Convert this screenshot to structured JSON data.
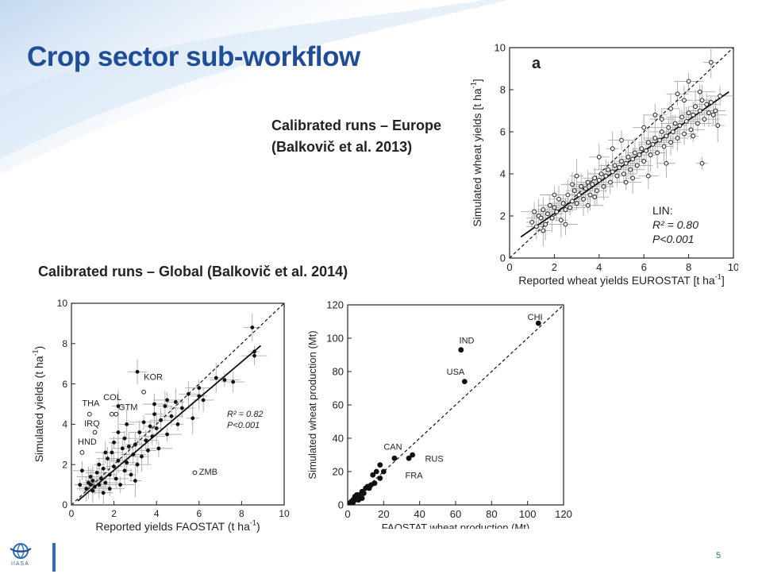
{
  "slide": {
    "title": "Crop sector sub-workflow",
    "caption_europe_line1": "Calibrated runs – Europe",
    "caption_europe_line2": "(Balkovič et al. 2013)",
    "caption_global": "Calibrated runs – Global (Balkovič et al. 2014)",
    "page_number": "5",
    "logo_text": "IIASA",
    "accent": "#1f4e96"
  },
  "chart_data": [
    {
      "type": "scatter",
      "panel": "a",
      "xlabel": "Reported wheat yields EUROSTAT [t ha",
      "ylabel": "Simulated wheat yields [t ha",
      "unit_sup": "-1",
      "unit_close": "]",
      "xlim": [
        0,
        10
      ],
      "ylim": [
        0,
        10
      ],
      "xticks": [
        0,
        2,
        4,
        6,
        8,
        10
      ],
      "yticks": [
        0,
        2,
        4,
        6,
        8,
        10
      ],
      "stats": [
        "LIN:",
        "R² = 0.80",
        "P<0.001"
      ],
      "one_to_one_line": true,
      "fit_line": {
        "x": [
          0.5,
          9.8
        ],
        "y": [
          1.0,
          7.9
        ]
      },
      "marker": "open-circle",
      "points": [
        [
          1.0,
          1.7
        ],
        [
          1.1,
          2.2
        ],
        [
          1.2,
          1.5
        ],
        [
          1.3,
          2.0
        ],
        [
          1.4,
          1.9
        ],
        [
          1.5,
          2.3
        ],
        [
          1.6,
          1.6
        ],
        [
          1.7,
          2.1
        ],
        [
          1.8,
          2.5
        ],
        [
          1.9,
          1.9
        ],
        [
          2.0,
          2.4
        ],
        [
          2.1,
          2.2
        ],
        [
          2.2,
          2.8
        ],
        [
          2.3,
          1.8
        ],
        [
          2.4,
          2.6
        ],
        [
          2.5,
          2.3
        ],
        [
          2.6,
          3.0
        ],
        [
          2.7,
          2.4
        ],
        [
          2.8,
          2.7
        ],
        [
          2.9,
          3.2
        ],
        [
          3.0,
          2.6
        ],
        [
          3.1,
          3.0
        ],
        [
          3.2,
          3.4
        ],
        [
          3.3,
          2.8
        ],
        [
          3.4,
          3.3
        ],
        [
          3.5,
          3.6
        ],
        [
          3.6,
          3.0
        ],
        [
          3.7,
          3.5
        ],
        [
          3.8,
          3.8
        ],
        [
          3.9,
          3.2
        ],
        [
          4.0,
          3.7
        ],
        [
          4.1,
          4.0
        ],
        [
          4.2,
          3.4
        ],
        [
          4.3,
          3.9
        ],
        [
          4.4,
          4.2
        ],
        [
          4.5,
          3.6
        ],
        [
          4.6,
          4.1
        ],
        [
          4.7,
          4.4
        ],
        [
          4.8,
          3.9
        ],
        [
          4.9,
          4.3
        ],
        [
          5.0,
          4.6
        ],
        [
          5.1,
          4.0
        ],
        [
          5.2,
          4.5
        ],
        [
          5.3,
          4.8
        ],
        [
          5.4,
          4.2
        ],
        [
          5.5,
          4.7
        ],
        [
          5.6,
          5.0
        ],
        [
          5.7,
          4.4
        ],
        [
          5.8,
          4.9
        ],
        [
          5.9,
          5.2
        ],
        [
          6.0,
          4.6
        ],
        [
          6.1,
          5.1
        ],
        [
          6.2,
          5.5
        ],
        [
          6.3,
          4.9
        ],
        [
          6.4,
          5.4
        ],
        [
          6.5,
          5.7
        ],
        [
          6.6,
          5.0
        ],
        [
          6.7,
          5.6
        ],
        [
          6.8,
          6.0
        ],
        [
          6.9,
          5.3
        ],
        [
          7.0,
          5.8
        ],
        [
          7.1,
          6.2
        ],
        [
          7.2,
          5.5
        ],
        [
          7.3,
          6.0
        ],
        [
          7.4,
          6.4
        ],
        [
          7.5,
          5.7
        ],
        [
          7.6,
          6.3
        ],
        [
          7.7,
          6.7
        ],
        [
          7.8,
          5.9
        ],
        [
          7.9,
          6.5
        ],
        [
          8.0,
          6.9
        ],
        [
          8.1,
          6.1
        ],
        [
          8.2,
          6.8
        ],
        [
          8.3,
          7.2
        ],
        [
          8.4,
          6.4
        ],
        [
          8.5,
          7.0
        ],
        [
          8.6,
          7.5
        ],
        [
          8.7,
          6.6
        ],
        [
          8.8,
          7.3
        ],
        [
          8.9,
          6.9
        ],
        [
          9.0,
          7.4
        ],
        [
          9.1,
          6.8
        ],
        [
          9.2,
          7.0
        ],
        [
          9.3,
          6.3
        ],
        [
          8.0,
          8.4
        ],
        [
          7.5,
          7.8
        ],
        [
          9.0,
          9.3
        ],
        [
          8.5,
          7.9
        ],
        [
          6.5,
          6.8
        ],
        [
          7.0,
          4.5
        ],
        [
          8.6,
          4.5
        ],
        [
          5.0,
          5.6
        ],
        [
          4.0,
          4.8
        ],
        [
          3.0,
          3.9
        ],
        [
          2.0,
          3.0
        ],
        [
          6.0,
          6.2
        ],
        [
          5.5,
          3.8
        ],
        [
          3.5,
          2.5
        ],
        [
          2.5,
          1.6
        ],
        [
          7.8,
          7.5
        ],
        [
          8.2,
          5.8
        ],
        [
          9.4,
          7.7
        ],
        [
          6.2,
          3.9
        ],
        [
          4.6,
          5.2
        ],
        [
          3.8,
          2.9
        ],
        [
          2.8,
          3.5
        ],
        [
          1.5,
          1.3
        ],
        [
          5.2,
          3.6
        ],
        [
          6.8,
          6.6
        ],
        [
          7.2,
          7.1
        ]
      ]
    },
    {
      "type": "scatter",
      "xlabel": "Reported yields FAOSTAT (t ha",
      "ylabel": "Simulated yields (t ha",
      "unit_sup": "-1",
      "unit_close": ")",
      "xlim": [
        0,
        10
      ],
      "ylim": [
        0,
        10
      ],
      "xticks": [
        0,
        2,
        4,
        6,
        8,
        10
      ],
      "yticks": [
        0,
        2,
        4,
        6,
        8,
        10
      ],
      "stats": [
        "R² = 0.82",
        "P<0.001"
      ],
      "one_to_one_line": true,
      "fit_line": {
        "x": [
          0.3,
          8.9
        ],
        "y": [
          0.2,
          7.9
        ]
      },
      "labels": [
        {
          "text": "KOR",
          "x": 3.4,
          "y": 6.2
        },
        {
          "text": "THA",
          "x": 0.5,
          "y": 4.9
        },
        {
          "text": "COL",
          "x": 1.5,
          "y": 5.2
        },
        {
          "text": "GTM",
          "x": 2.2,
          "y": 4.7
        },
        {
          "text": "IRQ",
          "x": 0.6,
          "y": 3.9
        },
        {
          "text": "HND",
          "x": 0.3,
          "y": 3.0
        },
        {
          "text": "ZMB",
          "x": 6.0,
          "y": 1.5
        }
      ],
      "open_points": [
        [
          0.85,
          4.5
        ],
        [
          1.1,
          3.6
        ],
        [
          0.5,
          2.6
        ],
        [
          1.9,
          4.5
        ],
        [
          2.1,
          4.5
        ],
        [
          3.4,
          5.6
        ],
        [
          5.8,
          1.6
        ]
      ],
      "points": [
        [
          0.4,
          1.0
        ],
        [
          0.5,
          1.7
        ],
        [
          0.7,
          0.8
        ],
        [
          0.8,
          1.1
        ],
        [
          0.9,
          1.4
        ],
        [
          1.0,
          0.7
        ],
        [
          1.0,
          1.2
        ],
        [
          1.1,
          0.9
        ],
        [
          1.2,
          1.6
        ],
        [
          1.3,
          1.0
        ],
        [
          1.3,
          2.0
        ],
        [
          1.4,
          1.3
        ],
        [
          1.5,
          0.6
        ],
        [
          1.5,
          1.8
        ],
        [
          1.6,
          1.1
        ],
        [
          1.7,
          2.3
        ],
        [
          1.8,
          1.5
        ],
        [
          1.8,
          0.8
        ],
        [
          1.9,
          2.6
        ],
        [
          2.0,
          1.9
        ],
        [
          2.0,
          3.1
        ],
        [
          2.1,
          1.3
        ],
        [
          2.2,
          2.2
        ],
        [
          2.2,
          3.6
        ],
        [
          2.3,
          1.0
        ],
        [
          2.4,
          2.8
        ],
        [
          2.5,
          1.7
        ],
        [
          2.5,
          3.3
        ],
        [
          2.6,
          2.1
        ],
        [
          2.7,
          2.9
        ],
        [
          2.8,
          1.5
        ],
        [
          2.9,
          2.5
        ],
        [
          3.0,
          3.0
        ],
        [
          3.0,
          1.2
        ],
        [
          3.1,
          2.0
        ],
        [
          3.2,
          3.6
        ],
        [
          3.3,
          2.4
        ],
        [
          3.4,
          4.1
        ],
        [
          3.5,
          3.2
        ],
        [
          3.6,
          2.7
        ],
        [
          3.7,
          3.9
        ],
        [
          3.8,
          3.4
        ],
        [
          3.9,
          4.5
        ],
        [
          4.0,
          3.8
        ],
        [
          4.1,
          2.8
        ],
        [
          4.2,
          4.2
        ],
        [
          4.4,
          4.9
        ],
        [
          4.5,
          3.5
        ],
        [
          4.7,
          4.4
        ],
        [
          4.9,
          5.1
        ],
        [
          5.0,
          4.0
        ],
        [
          5.2,
          4.8
        ],
        [
          5.5,
          5.5
        ],
        [
          5.7,
          4.3
        ],
        [
          6.0,
          5.8
        ],
        [
          6.2,
          5.2
        ],
        [
          6.8,
          6.3
        ],
        [
          7.2,
          6.2
        ],
        [
          7.6,
          6.1
        ],
        [
          8.5,
          8.8
        ],
        [
          8.6,
          7.6
        ],
        [
          8.6,
          7.4
        ],
        [
          3.1,
          6.6
        ],
        [
          2.2,
          4.9
        ],
        [
          4.5,
          5.2
        ],
        [
          1.6,
          2.6
        ],
        [
          2.6,
          4.0
        ],
        [
          0.9,
          1.0
        ],
        [
          3.9,
          5.0
        ],
        [
          6.0,
          5.4
        ]
      ]
    },
    {
      "type": "scatter",
      "xlabel": "FAOSTAT wheat production (Mt)",
      "ylabel": "Simulated wheat production (Mt)",
      "xlim": [
        0,
        120
      ],
      "ylim": [
        0,
        120
      ],
      "xticks": [
        0,
        20,
        40,
        60,
        80,
        100,
        120
      ],
      "yticks": [
        0,
        20,
        40,
        60,
        80,
        100,
        120
      ],
      "one_to_one_line": true,
      "labels": [
        {
          "text": "CHI",
          "x": 100,
          "y": 111
        },
        {
          "text": "IND",
          "x": 62,
          "y": 97
        },
        {
          "text": "USA",
          "x": 55,
          "y": 78
        },
        {
          "text": "CAN",
          "x": 20,
          "y": 33
        },
        {
          "text": "RUS",
          "x": 43,
          "y": 26
        },
        {
          "text": "FRA",
          "x": 32,
          "y": 16
        }
      ],
      "points": [
        [
          106,
          109
        ],
        [
          63,
          93
        ],
        [
          65,
          74
        ],
        [
          26,
          28
        ],
        [
          34,
          28
        ],
        [
          36,
          30
        ],
        [
          18,
          24
        ],
        [
          18,
          16
        ],
        [
          20,
          20
        ],
        [
          15,
          13
        ],
        [
          13,
          12
        ],
        [
          10,
          10
        ],
        [
          8,
          8
        ],
        [
          6,
          6
        ],
        [
          5,
          4
        ],
        [
          4,
          3
        ],
        [
          3,
          3
        ],
        [
          2,
          1
        ],
        [
          1,
          1
        ],
        [
          1,
          0.5
        ],
        [
          7,
          5
        ],
        [
          9,
          7
        ],
        [
          11,
          11
        ],
        [
          14,
          18
        ],
        [
          16,
          20
        ],
        [
          4,
          5
        ],
        [
          2,
          2
        ],
        [
          3,
          1.5
        ],
        [
          6,
          3
        ],
        [
          5,
          6
        ],
        [
          8,
          4
        ],
        [
          12,
          10
        ],
        [
          0.5,
          0.5
        ],
        [
          1.5,
          1
        ],
        [
          2.5,
          2
        ]
      ]
    }
  ]
}
